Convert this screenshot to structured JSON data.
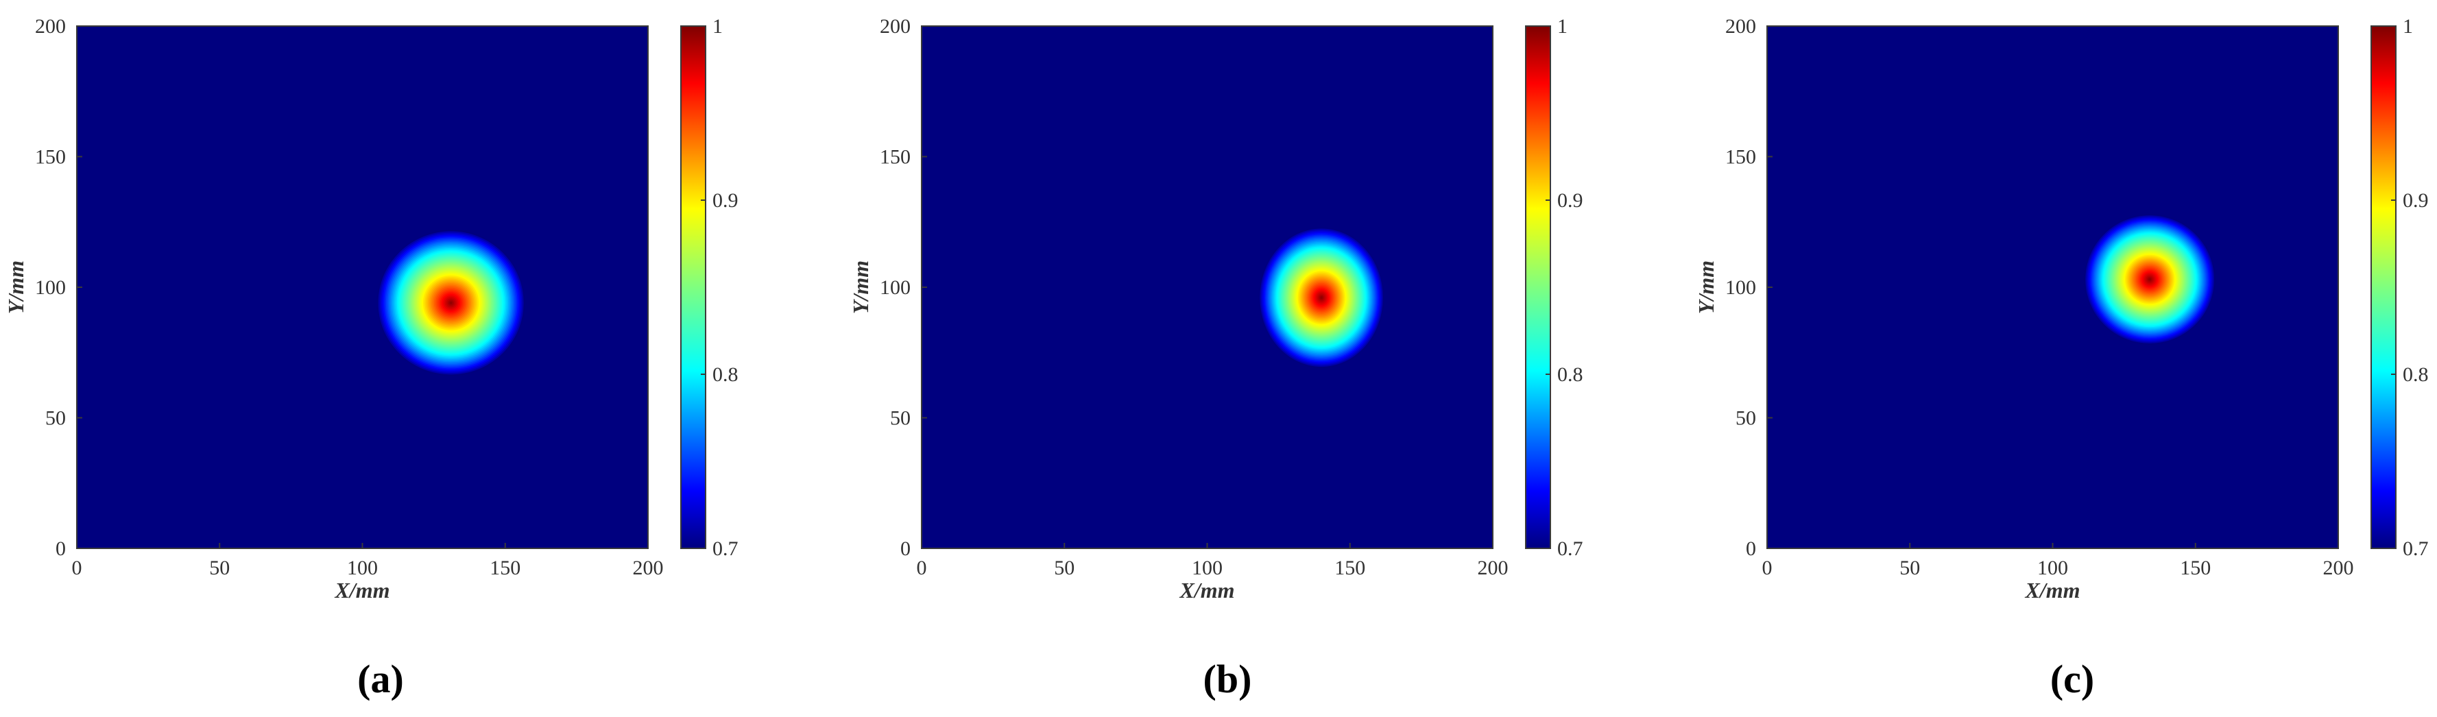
{
  "chart_data": [
    {
      "type": "heatmap",
      "panel_label": "(a)",
      "xlabel": "X/mm",
      "ylabel": "Y/mm",
      "xlim": [
        0,
        200
      ],
      "ylim": [
        0,
        200
      ],
      "xticks": [
        0,
        50,
        100,
        150,
        200
      ],
      "yticks": [
        0,
        50,
        100,
        150,
        200
      ],
      "colorbar": {
        "min": 0.7,
        "max": 1,
        "ticks": [
          0.7,
          0.8,
          0.9,
          1
        ],
        "tick_labels": [
          "0.7",
          "0.8",
          "0.9",
          "1"
        ],
        "colormap": "jet"
      },
      "background_value": 0.7,
      "peak": {
        "x": 131,
        "y": 94,
        "value": 1,
        "radius_x": 26,
        "radius_y": 28
      }
    },
    {
      "type": "heatmap",
      "panel_label": "(b)",
      "xlabel": "X/mm",
      "ylabel": "Y/mm",
      "xlim": [
        0,
        200
      ],
      "ylim": [
        0,
        200
      ],
      "xticks": [
        0,
        50,
        100,
        150,
        200
      ],
      "yticks": [
        0,
        50,
        100,
        150,
        200
      ],
      "colorbar": {
        "min": 0.7,
        "max": 1,
        "ticks": [
          0.7,
          0.8,
          0.9,
          1
        ],
        "tick_labels": [
          "0.7",
          "0.8",
          "0.9",
          "1"
        ],
        "colormap": "jet"
      },
      "background_value": 0.7,
      "peak": {
        "x": 140,
        "y": 96,
        "value": 1,
        "radius_x": 22,
        "radius_y": 27
      }
    },
    {
      "type": "heatmap",
      "panel_label": "(c)",
      "xlabel": "X/mm",
      "ylabel": "Y/mm",
      "xlim": [
        0,
        200
      ],
      "ylim": [
        0,
        200
      ],
      "xticks": [
        0,
        50,
        100,
        150,
        200
      ],
      "yticks": [
        0,
        50,
        100,
        150,
        200
      ],
      "colorbar": {
        "min": 0.7,
        "max": 1,
        "ticks": [
          0.7,
          0.8,
          0.9,
          1
        ],
        "tick_labels": [
          "0.7",
          "0.8",
          "0.9",
          "1"
        ],
        "colormap": "jet"
      },
      "background_value": 0.7,
      "peak": {
        "x": 134,
        "y": 103,
        "value": 1,
        "radius_x": 23,
        "radius_y": 25
      }
    }
  ]
}
